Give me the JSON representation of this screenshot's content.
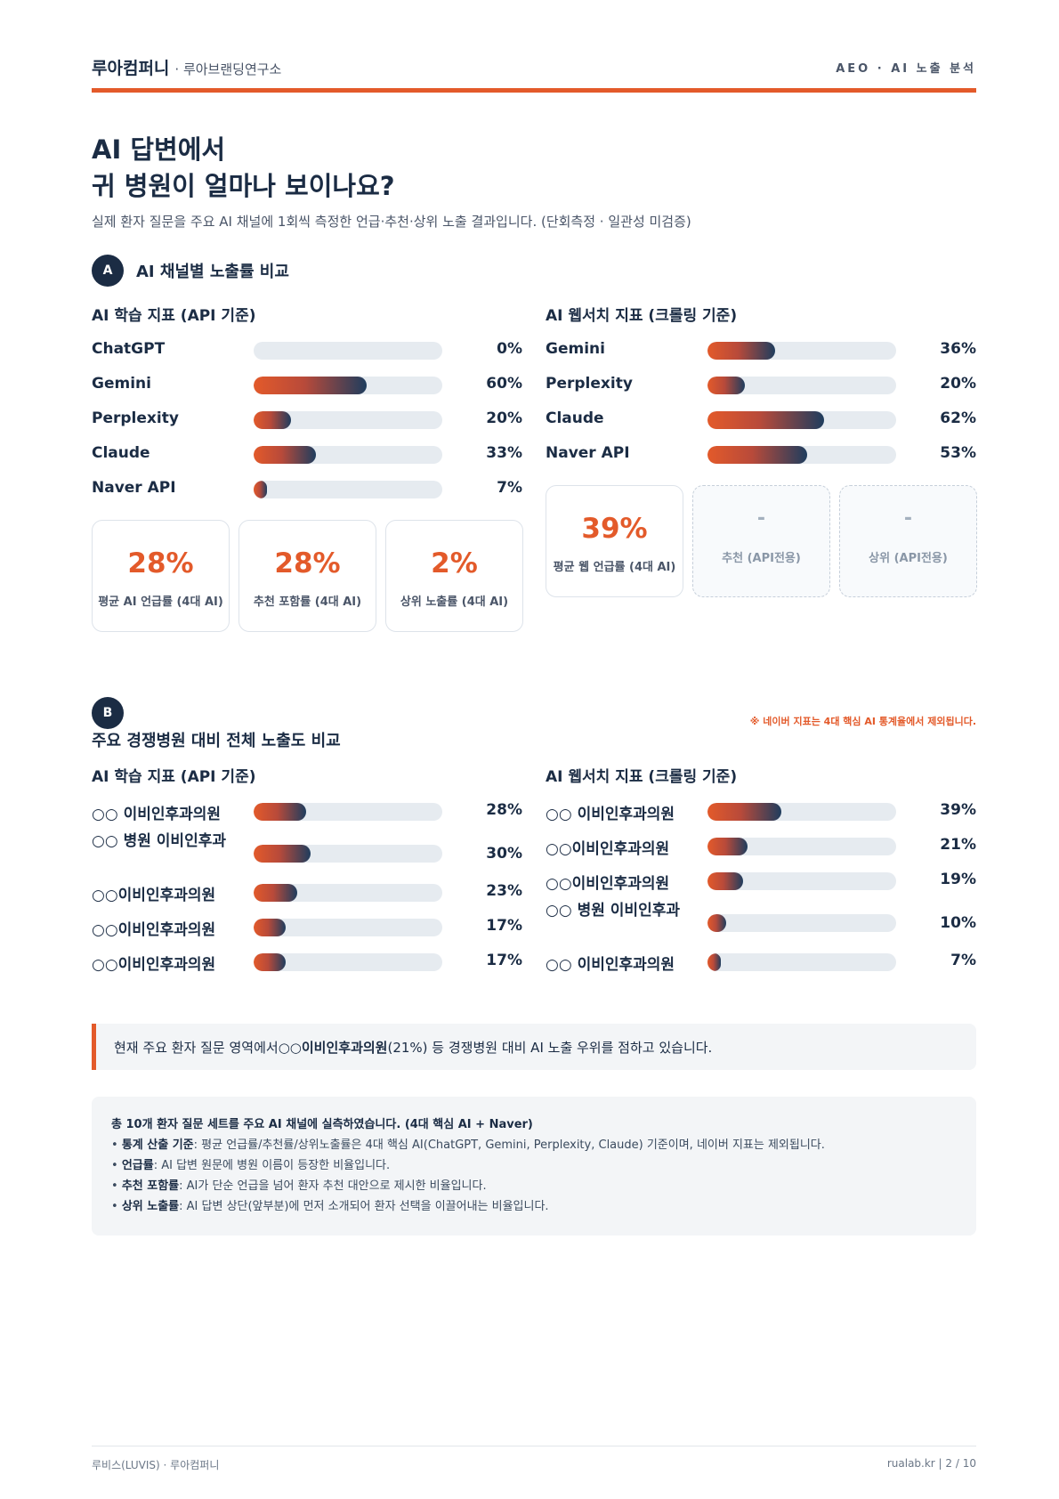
{
  "header": {
    "brand": "루아컴퍼니",
    "brand_sub": "· 루아브랜딩연구소",
    "right": "AEO · AI 노출 분석"
  },
  "title": {
    "line1": "AI 답변에서",
    "line2": "귀 병원이 얼마나 보이나요?"
  },
  "lead": "실제 환자 질문을 주요 AI 채널에 1회씩 측정한 언급·추천·상위 노출 결과입니다. (단회측정 · 일관성 미검증)",
  "section_a": {
    "badge": "A",
    "title": "AI 채널별 노출률 비교",
    "learning": {
      "title": "AI 학습 지표 (API 기준)",
      "rows": [
        {
          "name": "ChatGPT",
          "value": 0,
          "label": "0%"
        },
        {
          "name": "Gemini",
          "value": 60,
          "label": "60%"
        },
        {
          "name": "Perplexity",
          "value": 20,
          "label": "20%"
        },
        {
          "name": "Claude",
          "value": 33,
          "label": "33%"
        },
        {
          "name": "Naver API",
          "value": 7,
          "label": "7%"
        }
      ],
      "cards": [
        {
          "value": "28%",
          "label": "평균 AI 언급률 (4대 AI)"
        },
        {
          "value": "28%",
          "label": "추천 포함률 (4대 AI)"
        },
        {
          "value": "2%",
          "label": "상위 노출률 (4대 AI)"
        }
      ]
    },
    "websearch": {
      "title": "AI 웹서치 지표 (크롤링 기준)",
      "rows": [
        {
          "name": "Gemini",
          "value": 36,
          "label": "36%"
        },
        {
          "name": "Perplexity",
          "value": 20,
          "label": "20%"
        },
        {
          "name": "Claude",
          "value": 62,
          "label": "62%"
        },
        {
          "name": "Naver API",
          "value": 53,
          "label": "53%"
        }
      ],
      "cards": [
        {
          "value": "39%",
          "label": "평균 웹 언급률 (4대 AI)"
        },
        {
          "value": "-",
          "label": "추천 (API전용)"
        },
        {
          "value": "-",
          "label": "상위 (API전용)"
        }
      ]
    }
  },
  "section_b": {
    "badge": "B",
    "title": "주요 경쟁병원 대비 전체 노출도 비교",
    "note": "※ 네이버 지표는 4대 핵심 AI 통계율에서 제외됩니다.",
    "learning": {
      "title": "AI 학습 지표 (API 기준)",
      "rows": [
        {
          "name": "○○ 이비인후과의원",
          "value": 28,
          "label": "28%"
        },
        {
          "name": "○○ 병원 이비인후과",
          "value": 30,
          "label": "30%"
        },
        {
          "name": "○○이비인후과의원",
          "value": 23,
          "label": "23%"
        },
        {
          "name": "○○이비인후과의원",
          "value": 17,
          "label": "17%"
        },
        {
          "name": "○○이비인후과의원",
          "value": 17,
          "label": "17%"
        }
      ]
    },
    "websearch": {
      "title": "AI 웹서치 지표 (크롤링 기준)",
      "rows": [
        {
          "name": "○○ 이비인후과의원",
          "value": 39,
          "label": "39%"
        },
        {
          "name": "○○이비인후과의원",
          "value": 21,
          "label": "21%"
        },
        {
          "name": "○○이비인후과의원",
          "value": 19,
          "label": "19%"
        },
        {
          "name": "○○ 병원 이비인후과",
          "value": 10,
          "label": "10%"
        },
        {
          "name": "○○ 이비인후과의원",
          "value": 7,
          "label": "7%"
        }
      ]
    }
  },
  "callout": {
    "prefix": "현재 주요 환자 질문 영역에서 ",
    "highlight": "○○이비인후과의원",
    "suffix": "(21%) 등 경쟁병원 대비 AI 노출 우위를 점하고 있습니다."
  },
  "info": {
    "heading": "총 10개 환자 질문 세트를 주요 AI 채널에 실측하였습니다. (4대 핵심 AI + Naver)",
    "items": [
      {
        "term": "통계 산출 기준",
        "desc": ": 평균 언급률/추천률/상위노출률은 4대 핵심 AI(ChatGPT, Gemini, Perplexity, Claude) 기준이며, 네이버 지표는 제외됩니다."
      },
      {
        "term": "언급률",
        "desc": ": AI 답변 원문에 병원 이름이 등장한 비율입니다."
      },
      {
        "term": "추천 포함률",
        "desc": ": AI가 단순 언급을 넘어 환자 추천 대안으로 제시한 비율입니다."
      },
      {
        "term": "상위 노출률",
        "desc": ": AI 답변 상단(앞부분)에 먼저 소개되어 환자 선택을 이끌어내는 비율입니다."
      }
    ]
  },
  "footer": {
    "left": "루비스(LUVIS) · 루아컴퍼니",
    "right": "rualab.kr   |   2 / 10"
  },
  "colors": {
    "accent": "#e35a2a",
    "navy": "#1b2c44",
    "track": "#e6ebf0"
  }
}
